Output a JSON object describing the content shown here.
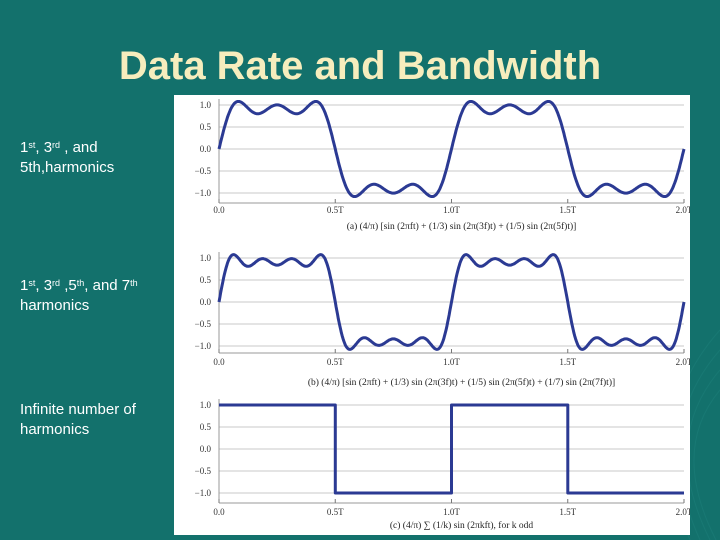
{
  "slide": {
    "title": "Data Rate and Bandwidth",
    "labels": [
      {
        "parts": [
          "1",
          "st",
          ", 3",
          "rd",
          " , and"
        ],
        "line2": "5th,harmonics"
      },
      {
        "parts": [
          "1",
          "st",
          ", 3",
          "rd",
          " ,5",
          "th",
          ", and 7",
          "th"
        ],
        "line2": "harmonics"
      },
      {
        "line1": "Infinite number of",
        "line2": "harmonics"
      }
    ]
  },
  "panels": [
    {
      "harmonics": [
        1,
        3,
        5
      ],
      "y_ticks": [
        "1.0",
        "0.5",
        "0.0",
        "−0.5",
        "−1.0"
      ],
      "y_tick_values": [
        1.0,
        0.5,
        0.0,
        -0.5,
        -1.0
      ],
      "x_ticks": [
        "0.0",
        "0.5T",
        "1.0T",
        "1.5T",
        "2.0T"
      ],
      "caption": "(a) (4/π) [sin (2πft) + (1/3) sin (2π(3f)t) + (1/5) sin (2π(5f)t)]"
    },
    {
      "harmonics": [
        1,
        3,
        5,
        7
      ],
      "y_ticks": [
        "1.0",
        "0.5",
        "0.0",
        "−0.5",
        "−1.0"
      ],
      "y_tick_values": [
        1.0,
        0.5,
        0.0,
        -0.5,
        -1.0
      ],
      "x_ticks": [
        "0.0",
        "0.5T",
        "1.0T",
        "1.5T",
        "2.0T"
      ],
      "caption": "(b) (4/π) [sin (2πft) + (1/3) sin (2π(3f)t) + (1/5) sin (2π(5f)t) + (1/7) sin (2π(7f)t)]"
    },
    {
      "harmonics": "square",
      "y_ticks": [
        "1.0",
        "0.5",
        "0.0",
        "−0.5",
        "−1.0"
      ],
      "y_tick_values": [
        1.0,
        0.5,
        0.0,
        -0.5,
        -1.0
      ],
      "x_ticks": [
        "0.0",
        "0.5T",
        "1.0T",
        "1.5T",
        "2.0T"
      ],
      "caption": "(c) (4/π) ∑ (1/k) sin (2πkft), for k odd"
    }
  ],
  "colors": {
    "background": "#13716c",
    "title": "#f6edbd",
    "curve": "#2b3a93",
    "grid": "#c8c8c8"
  }
}
